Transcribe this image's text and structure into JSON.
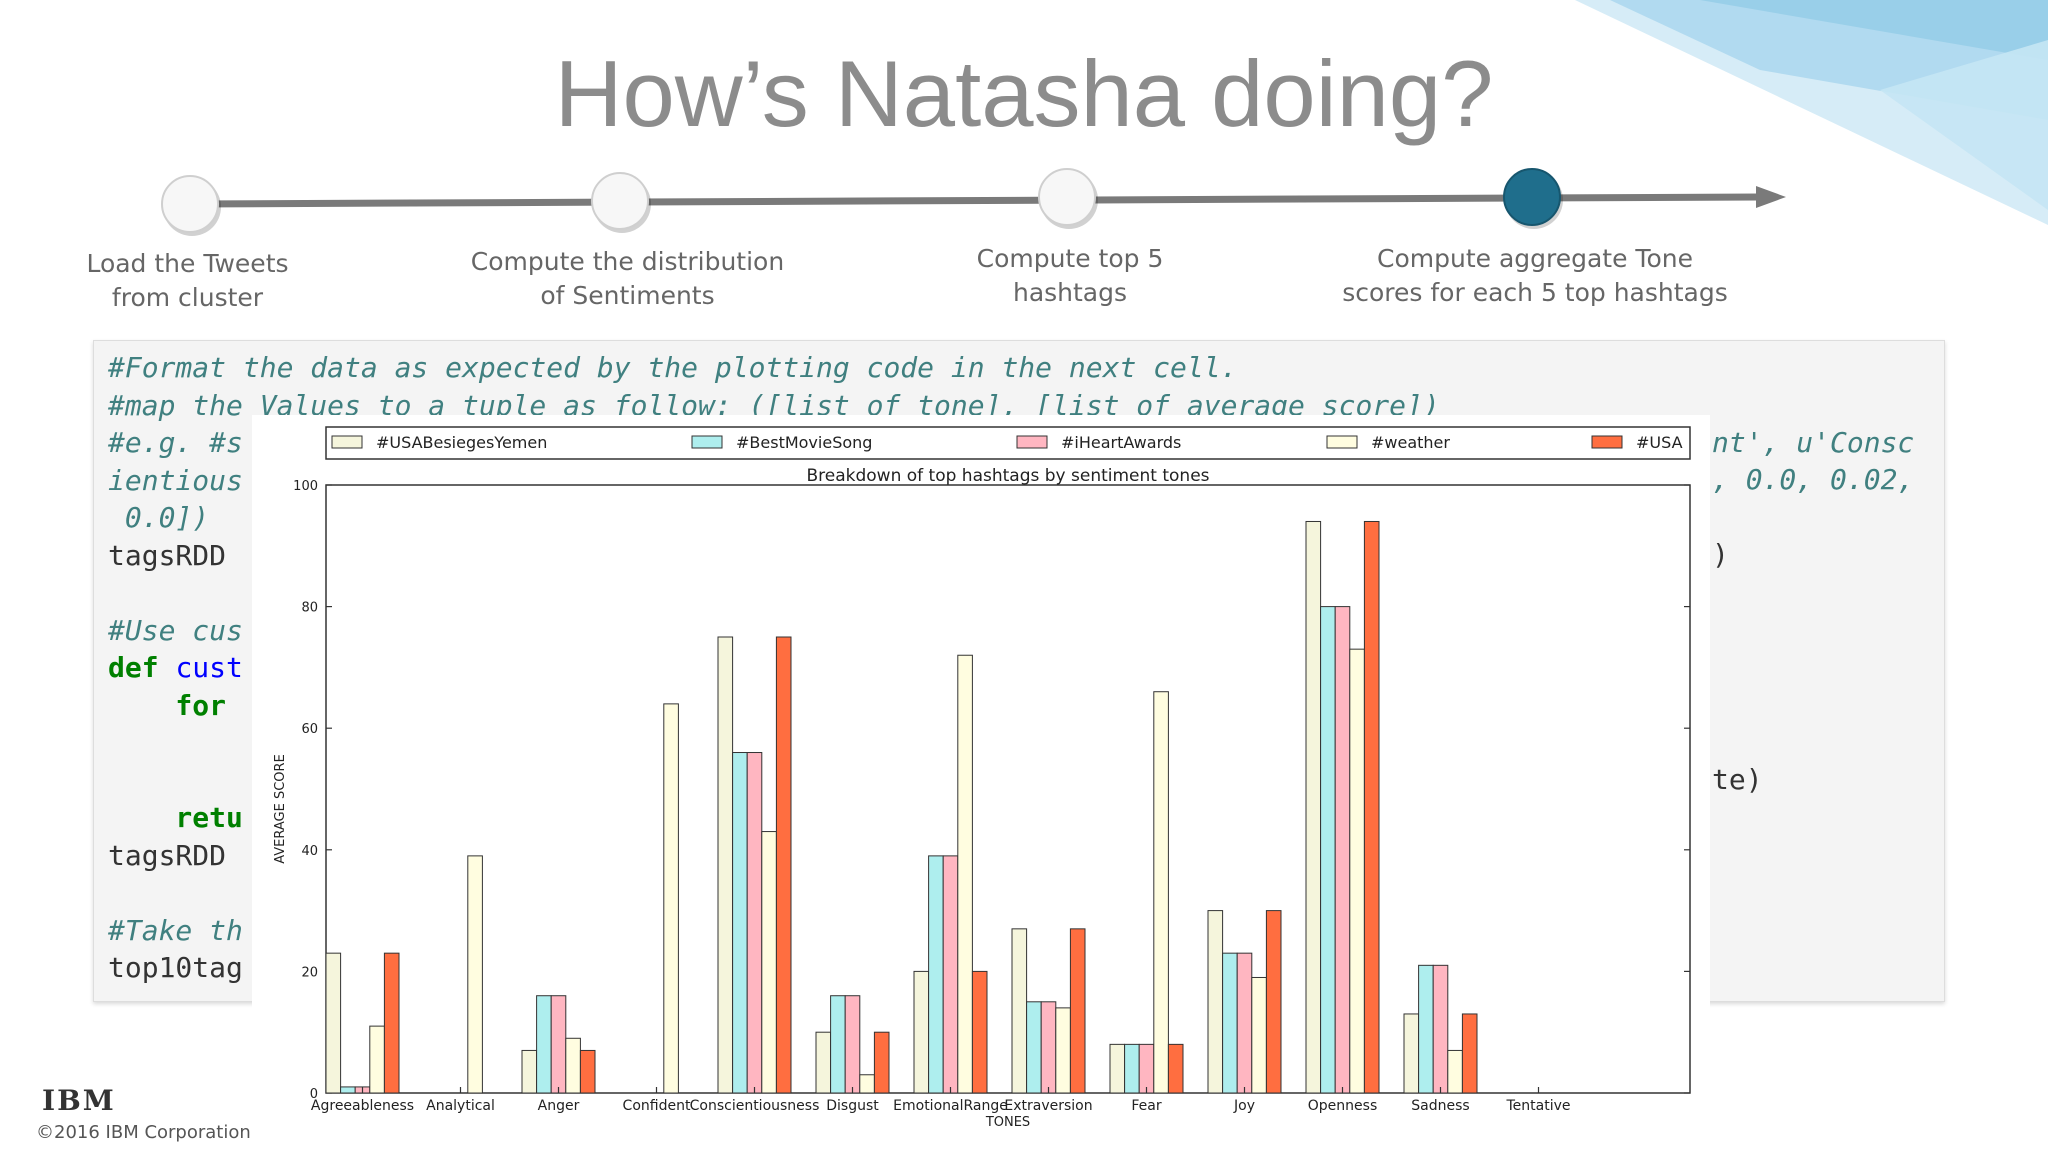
{
  "slide": {
    "title": "How’s Natasha doing?",
    "footer_logo": "IBM",
    "footer_copyright": "©2016 IBM Corporation",
    "accent_color": "#1f6e8c"
  },
  "steps": [
    {
      "label": "Load the Tweets\nfrom cluster",
      "active": false
    },
    {
      "label": "Compute the distribution\nof Sentiments",
      "active": false
    },
    {
      "label": "Compute top 5\nhashtags",
      "active": false
    },
    {
      "label": "Compute aggregate Tone\nscores for each 5 top hashtags",
      "active": true
    }
  ],
  "code": {
    "lines": [
      [
        {
          "t": "#Format the data as expected by the plotting code in the next cell.",
          "c": "cm"
        }
      ],
      [
        {
          "t": "#map the Values to a tuple as follow: ([list of tone], [list of average score])",
          "c": "cm"
        }
      ],
      [
        {
          "t": "#e.g. #s",
          "c": "cm"
        }
      ],
      [
        {
          "t": "ientious",
          "c": "cm"
        }
      ],
      [
        {
          "t": " 0.0])",
          "c": "cm"
        }
      ],
      [
        {
          "t": "tagsRDD",
          "c": ""
        }
      ],
      [
        {
          "t": "",
          "c": ""
        }
      ],
      [
        {
          "t": "#Use cus",
          "c": "cm"
        }
      ],
      [
        {
          "t": "def ",
          "c": "kw"
        },
        {
          "t": "cust",
          "c": "nf"
        }
      ],
      [
        {
          "t": "    for",
          "c": "kw"
        }
      ],
      [
        {
          "t": "",
          "c": ""
        }
      ],
      [
        {
          "t": "",
          "c": ""
        }
      ],
      [
        {
          "t": "    retu",
          "c": "kw"
        }
      ],
      [
        {
          "t": "tagsRDD",
          "c": ""
        }
      ],
      [
        {
          "t": "",
          "c": ""
        }
      ],
      [
        {
          "t": "#Take th",
          "c": "cm"
        }
      ],
      [
        {
          "t": "top10tag",
          "c": ""
        }
      ]
    ],
    "right_fragments": [
      "nt', u'Consc",
      ", 0.0, 0.02,",
      ")",
      "te)"
    ]
  },
  "chart_data": {
    "type": "bar",
    "title": "Breakdown of top hashtags by sentiment tones",
    "xlabel": "TONES",
    "ylabel": "AVERAGE SCORE",
    "ylim": [
      0,
      100
    ],
    "yticks": [
      0,
      20,
      40,
      60,
      80,
      100
    ],
    "grid": false,
    "legend_position": "top",
    "categories": [
      "Agreeableness",
      "Analytical",
      "Anger",
      "Confident",
      "Conscientiousness",
      "Disgust",
      "EmotionalRange",
      "Extraversion",
      "Fear",
      "Joy",
      "Openness",
      "Sadness",
      "Tentative"
    ],
    "series": [
      {
        "name": "#USABesiegesYemen",
        "color": "#f5f5dc",
        "values": [
          23,
          0,
          7,
          0,
          75,
          10,
          20,
          27,
          8,
          30,
          94,
          13,
          0
        ]
      },
      {
        "name": "#BestMovieSong",
        "color": "#aeeeee",
        "values": [
          1,
          0,
          16,
          0,
          56,
          16,
          39,
          15,
          8,
          23,
          80,
          21,
          0
        ]
      },
      {
        "name": "#iHeartAwards",
        "color": "#ffb6c1",
        "values": [
          1,
          0,
          16,
          0,
          56,
          16,
          39,
          15,
          8,
          23,
          80,
          21,
          0
        ]
      },
      {
        "name": "#weather",
        "color": "#fffde0",
        "values": [
          11,
          39,
          9,
          64,
          43,
          3,
          72,
          14,
          66,
          19,
          73,
          7,
          0
        ]
      },
      {
        "name": "#USA",
        "color": "#ff6e40",
        "values": [
          23,
          0,
          7,
          0,
          75,
          10,
          20,
          27,
          8,
          30,
          94,
          13,
          0
        ]
      }
    ]
  }
}
